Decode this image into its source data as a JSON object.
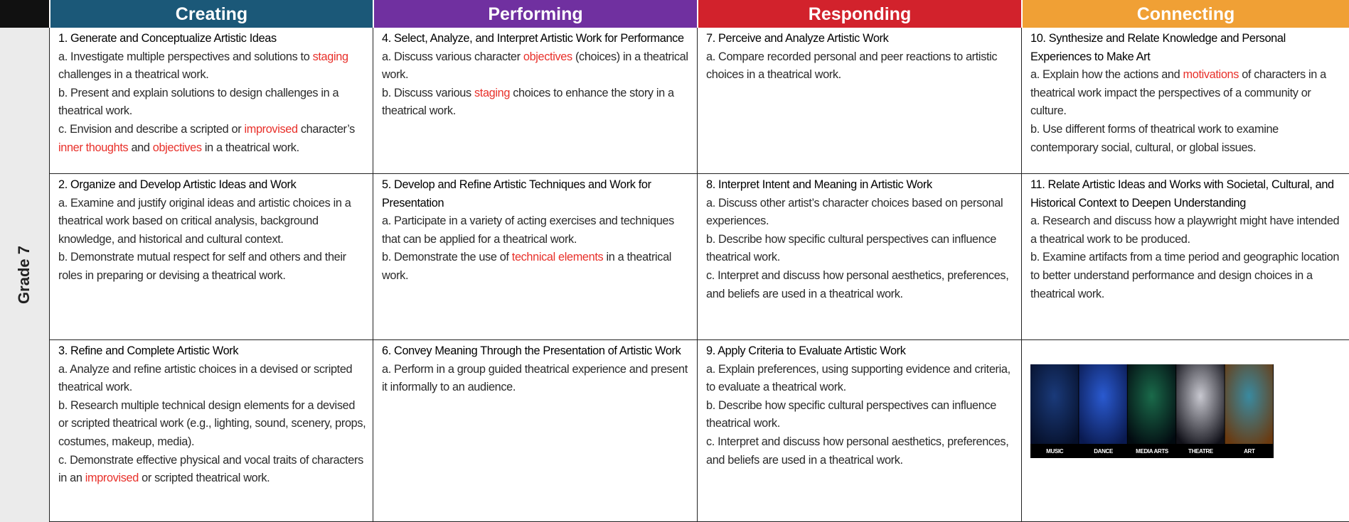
{
  "grade": "Grade 7",
  "highlight_color": "#e8302a",
  "columns": [
    {
      "name": "Creating",
      "color": "#1b5878"
    },
    {
      "name": "Performing",
      "color": "#7030a0"
    },
    {
      "name": "Responding",
      "color": "#d2222c"
    },
    {
      "name": "Connecting",
      "color": "#f0a035"
    }
  ],
  "rows": [
    [
      {
        "title": "1. Generate and Conceptualize Artistic Ideas",
        "items": [
          [
            "a. Investigate multiple perspectives and solutions to ",
            "staging",
            " challenges in a theatrical work."
          ],
          [
            "b. Present and explain solutions to design challenges in a theatrical work."
          ],
          [
            "c. Envision and describe a scripted or ",
            "improvised",
            " character’s ",
            "inner thoughts",
            " and ",
            "objectives",
            " in a theatrical work."
          ]
        ]
      },
      {
        "title": "4. Select, Analyze, and Interpret Artistic Work for Performance",
        "items": [
          [
            "a. Discuss various character ",
            "objectives",
            " (choices) in a theatrical work."
          ],
          [
            "b. Discuss various ",
            "staging",
            " choices to enhance the story in a theatrical work."
          ]
        ]
      },
      {
        "title": "7. Perceive and Analyze Artistic Work",
        "items": [
          [
            "a. Compare recorded personal and peer reactions to artistic choices in a theatrical work."
          ]
        ]
      },
      {
        "title": "10. Synthesize and Relate Knowledge and Personal Experiences to Make Art",
        "items": [
          [
            "a. Explain how the actions and ",
            "motivations",
            " of characters in a theatrical work impact the perspectives of a community or culture."
          ],
          [
            "b. Use different forms of theatrical work to examine contemporary social, cultural, or global issues."
          ]
        ]
      }
    ],
    [
      {
        "title": "2. Organize and Develop Artistic Ideas and Work",
        "items": [
          [
            "a. Examine and justify original ideas and artistic choices in a theatrical work based on critical analysis, background knowledge, and historical and cultural context."
          ],
          [
            "b. Demonstrate mutual respect for self and others and their roles in preparing or devising a theatrical work."
          ]
        ]
      },
      {
        "title": "5. Develop and Refine Artistic Techniques and Work for Presentation",
        "items": [
          [
            "a. Participate in a variety of acting exercises and techniques that can be applied for a theatrical work."
          ],
          [
            "b. Demonstrate the use of ",
            "technical elements",
            " in a theatrical work."
          ]
        ]
      },
      {
        "title": "8. Interpret Intent and Meaning in Artistic Work",
        "items": [
          [
            "a. Discuss other artist’s character choices based on personal experiences."
          ],
          [
            "b. Describe how specific cultural perspectives can influence theatrical work."
          ],
          [
            "c. Interpret and discuss how personal aesthetics, preferences, and beliefs are used in a theatrical work."
          ]
        ]
      },
      {
        "title": "11. Relate Artistic Ideas and Works with Societal, Cultural, and Historical Context to Deepen Understanding",
        "items": [
          [
            "a. Research and discuss how a playwright might have intended a theatrical work to be produced."
          ],
          [
            "b. Examine artifacts from a time period and geographic location to better understand performance and design choices in a theatrical work."
          ]
        ]
      }
    ],
    [
      {
        "title": "3. Refine and Complete Artistic Work",
        "items": [
          [
            "a. Analyze and refine artistic choices in a devised or scripted theatrical work."
          ],
          [
            "b. Research multiple technical design elements for a devised or scripted theatrical work (e.g., lighting, sound, scenery, props, costumes, makeup, media)."
          ],
          [
            "c. Demonstrate effective physical and vocal traits of characters in an ",
            "improvised",
            " or scripted theatrical work."
          ]
        ]
      },
      {
        "title": "6. Convey Meaning Through the Presentation of Artistic Work",
        "items": [
          [
            "a. Perform in a group guided theatrical experience and present it informally to an audience."
          ]
        ]
      },
      {
        "title": "9. Apply Criteria to Evaluate Artistic Work",
        "items": [
          [
            "a. Explain preferences, using supporting evidence and criteria, to evaluate a theatrical work."
          ],
          [
            "b. Describe how specific cultural perspectives can influence theatrical work."
          ],
          [
            "c. Interpret and discuss how personal aesthetics, preferences, and beliefs are used in a theatrical work."
          ]
        ]
      },
      {
        "image_labels": [
          "MUSIC",
          "DANCE",
          "MEDIA ARTS",
          "THEATRE",
          "ART"
        ]
      }
    ]
  ]
}
